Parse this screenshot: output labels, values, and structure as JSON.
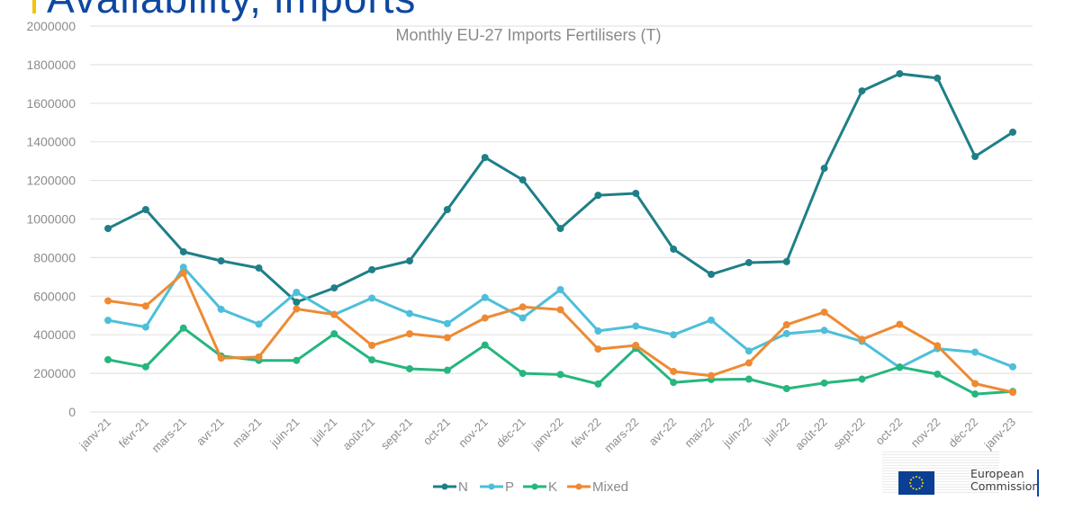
{
  "slide": {
    "heading": "Availability, imports",
    "logo_text": [
      "European",
      "Commission"
    ]
  },
  "colors": {
    "N": "#1f7f87",
    "P": "#4dbfd9",
    "K": "#26b67e",
    "Mixed": "#ee8a33",
    "grid": "#e4e4e4",
    "heading": "#0e47a1",
    "accent": "#f4c20d"
  },
  "chart_data": {
    "type": "line",
    "title": "Monthly EU-27 Imports Fertilisers (T)",
    "xlabel": "",
    "ylabel": "",
    "ylim": [
      0,
      2000000
    ],
    "yticks": [
      "0",
      "200000",
      "400000",
      "600000",
      "800000",
      "1000000",
      "1200000",
      "1400000",
      "1600000",
      "1800000",
      "2000000"
    ],
    "grid": true,
    "legend_position": "bottom",
    "categories": [
      "janv-21",
      "févr-21",
      "mars-21",
      "avr-21",
      "mai-21",
      "juin-21",
      "juil-21",
      "août-21",
      "sept-21",
      "oct-21",
      "nov-21",
      "déc-21",
      "janv-22",
      "févr-22",
      "mars-22",
      "avr-22",
      "mai-22",
      "juin-22",
      "juil-22",
      "août-22",
      "sept-22",
      "oct-22",
      "nov-22",
      "déc-22",
      "janv-23"
    ],
    "series": [
      {
        "name": "N",
        "color_key": "N",
        "values": [
          951000,
          1049000,
          830000,
          783000,
          746000,
          569000,
          643000,
          737000,
          783000,
          1049000,
          1319000,
          1203000,
          951000,
          1123000,
          1133000,
          844000,
          713000,
          774000,
          779000,
          1263000,
          1664000,
          1753000,
          1730000,
          1324000,
          1450000
        ]
      },
      {
        "name": "P",
        "color_key": "P",
        "values": [
          475000,
          440000,
          750000,
          532000,
          455000,
          620000,
          505000,
          590000,
          510000,
          458000,
          593000,
          487000,
          634000,
          420000,
          445000,
          400000,
          476000,
          316000,
          406000,
          423000,
          366000,
          230000,
          328000,
          310000,
          234000
        ]
      },
      {
        "name": "K",
        "color_key": "K",
        "values": [
          271000,
          234000,
          435000,
          290000,
          267000,
          267000,
          405000,
          270000,
          224000,
          216000,
          347000,
          200000,
          194000,
          145000,
          330000,
          153000,
          168000,
          170000,
          121000,
          150000,
          170000,
          233000,
          196000,
          93000,
          106000
        ]
      },
      {
        "name": "Mixed",
        "color_key": "Mixed",
        "values": [
          576000,
          549000,
          719000,
          279000,
          285000,
          534000,
          505000,
          345000,
          405000,
          385000,
          487000,
          544000,
          530000,
          326000,
          345000,
          210000,
          188000,
          254000,
          452000,
          517000,
          376000,
          454000,
          343000,
          147000,
          102000
        ]
      }
    ]
  }
}
